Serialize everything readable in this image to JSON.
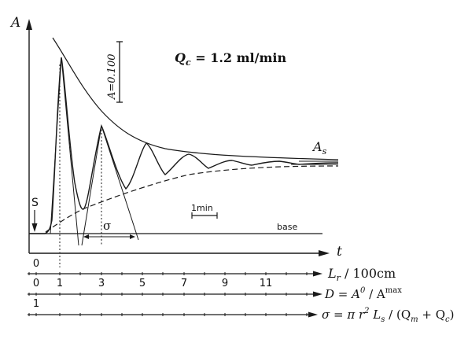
{
  "colors": {
    "ink": "#1a1a1a",
    "background": "#ffffff"
  },
  "labels": {
    "y_axis": "A",
    "x_axis": "t",
    "flow_rate": "Qc = 1.2 ml/min",
    "flow_rate_symbol": "Q",
    "flow_rate_subscript": "c",
    "flow_rate_value": " = 1.2 ml/min",
    "amplitude_scale": "A=0.100",
    "steady_state": "A",
    "steady_state_subscript": "s",
    "sigma": "σ",
    "time_scale": "1min",
    "baseline": "base",
    "injection_marker": "S"
  },
  "axes": [
    {
      "id": "t",
      "ticks": [
        "0"
      ]
    },
    {
      "id": "Lr",
      "label": "Lr / 100cm",
      "label_symbol": "L",
      "label_subscript": "r",
      "label_rest": " / 100cm",
      "ticks": [
        "0",
        "1",
        "3",
        "5",
        "7",
        "9",
        "11"
      ]
    },
    {
      "id": "D",
      "label": "D = A⁰ / Aᵐᵃˣ",
      "label_lhs": "D = A",
      "label_sup1": "0",
      "label_mid": " / A",
      "label_sup2": "max",
      "ticks": [
        "1"
      ]
    },
    {
      "id": "sigma",
      "label": "σ = π r² Ls / (Qm + Qc)",
      "label_a": "σ = π r",
      "label_sup": "2",
      "label_b": " L",
      "label_sub1": "s",
      "label_c": " / (Q",
      "label_sub2": "m",
      "label_d": " + Q",
      "label_sub3": "c",
      "label_e": ")",
      "ticks": []
    }
  ]
}
